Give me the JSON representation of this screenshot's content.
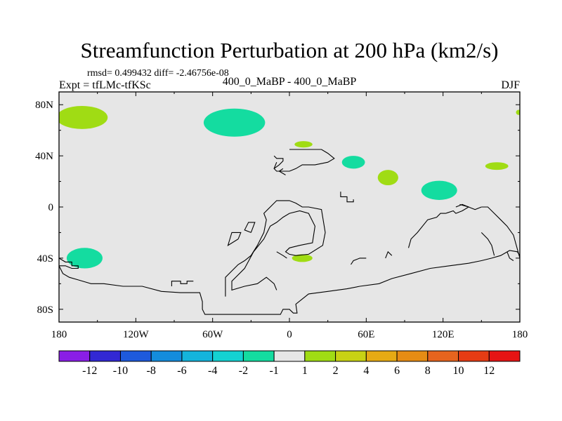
{
  "chart_data": {
    "type": "heatmap",
    "title": "Streamfunction Perturbation at 200 hPa (km2/s)",
    "stats_text": "rmsd= 0.499432 diff= -2.46756e-08",
    "subtitle": "400_0_MaBP - 400_0_MaBP",
    "left_label": "Expt = tfLMc-tfKSc",
    "season": "DJF",
    "x_range": [
      -180,
      180
    ],
    "y_range": [
      -90,
      90
    ],
    "x_ticks": [
      {
        "value": -180,
        "label": "180"
      },
      {
        "value": -120,
        "label": "120W"
      },
      {
        "value": -60,
        "label": "60W"
      },
      {
        "value": 0,
        "label": "0"
      },
      {
        "value": 60,
        "label": "60E"
      },
      {
        "value": 120,
        "label": "120E"
      },
      {
        "value": 180,
        "label": "180"
      }
    ],
    "y_ticks": [
      {
        "value": 80,
        "label": "80N"
      },
      {
        "value": 40,
        "label": "40N"
      },
      {
        "value": 0,
        "label": "0"
      },
      {
        "value": -40,
        "label": "40S"
      },
      {
        "value": -80,
        "label": "80S"
      }
    ],
    "background_color": "#e6e6e6",
    "colorbar": {
      "colors": [
        "#8a1ee6",
        "#3228d4",
        "#1e5adc",
        "#148cdc",
        "#14b4dc",
        "#14d2d2",
        "#14dca0",
        "#e6e6e6",
        "#a0dc14",
        "#c8d214",
        "#e6aa14",
        "#e68c14",
        "#e6641e",
        "#e63c14",
        "#e61414"
      ],
      "labels": [
        "-12",
        "-10",
        "-8",
        "-6",
        "-4",
        "-2",
        "-1",
        "1",
        "2",
        "4",
        "6",
        "8",
        "10",
        "12"
      ]
    },
    "anomalies": [
      {
        "lon": -162,
        "lat": 70,
        "rlon": 20,
        "rlat": 9,
        "value": 1.5,
        "color": "#a0dc14"
      },
      {
        "lon": -43,
        "lat": 66,
        "rlon": 24,
        "rlat": 11,
        "value": -1.5,
        "color": "#14dca0"
      },
      {
        "lon": 11,
        "lat": 49,
        "rlon": 7,
        "rlat": 2.5,
        "value": 1.5,
        "color": "#a0dc14"
      },
      {
        "lon": 50,
        "lat": 35,
        "rlon": 9,
        "rlat": 5,
        "value": -1.5,
        "color": "#14dca0"
      },
      {
        "lon": 77,
        "lat": 23,
        "rlon": 8,
        "rlat": 6,
        "value": 1.5,
        "color": "#a0dc14"
      },
      {
        "lon": 117,
        "lat": 13,
        "rlon": 14,
        "rlat": 7.5,
        "value": -1.5,
        "color": "#14dca0"
      },
      {
        "lon": 162,
        "lat": 32,
        "rlon": 9,
        "rlat": 3,
        "value": 1.5,
        "color": "#a0dc14"
      },
      {
        "lon": -160,
        "lat": -40,
        "rlon": 14,
        "rlat": 8,
        "value": -1.5,
        "color": "#14dca0"
      },
      {
        "lon": 10,
        "lat": -40,
        "rlon": 8,
        "rlat": 3,
        "value": 1.5,
        "color": "#a0dc14"
      },
      {
        "lon": 179,
        "lat": 74,
        "rlon": 2,
        "rlat": 2,
        "value": 1.5,
        "color": "#a0dc14"
      }
    ],
    "outlines": [
      [
        [
          -180,
          -40
        ],
        [
          -175,
          -43
        ],
        [
          -170,
          -43
        ],
        [
          -170,
          -46
        ],
        [
          -165,
          -46
        ],
        [
          -165,
          -48
        ],
        [
          -170,
          -48
        ],
        [
          -175,
          -46
        ],
        [
          -180,
          -46
        ]
      ],
      [
        [
          -180,
          -46
        ],
        [
          -177,
          -52
        ],
        [
          -172,
          -55
        ],
        [
          -165,
          -57
        ],
        [
          -155,
          -60
        ],
        [
          -145,
          -60
        ],
        [
          -130,
          -62
        ],
        [
          -115,
          -62
        ],
        [
          -100,
          -66
        ],
        [
          -85,
          -67
        ],
        [
          -70,
          -67
        ],
        [
          -68,
          -74
        ],
        [
          -68,
          -80
        ],
        [
          -66,
          -84
        ],
        [
          -40,
          -84
        ],
        [
          -20,
          -84
        ],
        [
          -7,
          -84
        ],
        [
          -5,
          -80
        ],
        [
          0,
          -80
        ],
        [
          3,
          -83
        ],
        [
          6,
          -83
        ],
        [
          5,
          -76
        ],
        [
          10,
          -72
        ],
        [
          15,
          -68
        ],
        [
          30,
          -66
        ],
        [
          45,
          -64
        ],
        [
          55,
          -62
        ],
        [
          70,
          -60
        ],
        [
          80,
          -56
        ],
        [
          95,
          -52
        ],
        [
          110,
          -48
        ],
        [
          125,
          -46
        ],
        [
          140,
          -44
        ],
        [
          150,
          -42
        ],
        [
          158,
          -40
        ],
        [
          165,
          -38
        ],
        [
          172,
          -34
        ],
        [
          178,
          -35
        ],
        [
          180,
          -38
        ]
      ],
      [
        [
          -92,
          -62
        ],
        [
          -92,
          -58
        ],
        [
          -85,
          -58
        ],
        [
          -85,
          -60
        ],
        [
          -80,
          -60
        ],
        [
          -80,
          -58
        ],
        [
          -75,
          -58
        ]
      ],
      [
        [
          -50,
          -70
        ],
        [
          -50,
          -55
        ],
        [
          -45,
          -50
        ],
        [
          -40,
          -45
        ],
        [
          -35,
          -42
        ],
        [
          -30,
          -38
        ],
        [
          -25,
          -30
        ],
        [
          -20,
          -20
        ],
        [
          -18,
          -10
        ],
        [
          -20,
          -5
        ],
        [
          -15,
          0
        ],
        [
          -10,
          5
        ],
        [
          0,
          5
        ],
        [
          5,
          3
        ],
        [
          10,
          0
        ],
        [
          15,
          0
        ],
        [
          25,
          -2
        ],
        [
          28,
          -20
        ],
        [
          26,
          -30
        ],
        [
          15,
          -37
        ],
        [
          5,
          -38
        ],
        [
          0,
          -37
        ],
        [
          -3,
          -35
        ],
        [
          0,
          -32
        ],
        [
          8,
          -30
        ],
        [
          18,
          -28
        ],
        [
          20,
          -15
        ],
        [
          15,
          -5
        ],
        [
          8,
          -3
        ],
        [
          0,
          -5
        ],
        [
          -5,
          -8
        ],
        [
          -10,
          -12
        ],
        [
          -15,
          -15
        ],
        [
          -20,
          -25
        ],
        [
          -28,
          -35
        ],
        [
          -35,
          -48
        ],
        [
          -45,
          -58
        ],
        [
          -45,
          -65
        ],
        [
          -35,
          -62
        ],
        [
          -25,
          -60
        ],
        [
          -18,
          -55
        ],
        [
          -12,
          -60
        ],
        [
          -10,
          -65
        ]
      ],
      [
        [
          -30,
          -20
        ],
        [
          -27,
          -12
        ],
        [
          -32,
          -12
        ],
        [
          -35,
          -18
        ],
        [
          -30,
          -20
        ]
      ],
      [
        [
          -40,
          -25
        ],
        [
          -38,
          -20
        ],
        [
          -45,
          -20
        ],
        [
          -48,
          -30
        ],
        [
          -40,
          -25
        ]
      ],
      [
        [
          -10,
          -35
        ],
        [
          -5,
          -38
        ],
        [
          -2,
          -40
        ]
      ],
      [
        [
          -12,
          40
        ],
        [
          -10,
          38
        ],
        [
          -5,
          38
        ],
        [
          -5,
          36
        ],
        [
          -8,
          33
        ],
        [
          -12,
          30
        ]
      ],
      [
        [
          -10,
          35
        ],
        [
          -12,
          30
        ],
        [
          -10,
          28
        ],
        [
          0,
          28
        ],
        [
          5,
          30
        ],
        [
          10,
          33
        ],
        [
          20,
          33
        ],
        [
          30,
          35
        ],
        [
          35,
          38
        ],
        [
          30,
          42
        ],
        [
          25,
          45
        ],
        [
          15,
          45
        ],
        [
          5,
          45
        ],
        [
          0,
          45
        ]
      ],
      [
        [
          -5,
          30
        ],
        [
          -8,
          28
        ],
        [
          -3,
          25
        ]
      ],
      [
        [
          40,
          12
        ],
        [
          40,
          8
        ],
        [
          45,
          8
        ],
        [
          45,
          4
        ],
        [
          50,
          4
        ],
        [
          50,
          6
        ]
      ],
      [
        [
          60,
          -40
        ],
        [
          55,
          -40
        ],
        [
          50,
          -42
        ],
        [
          48,
          -45
        ]
      ],
      [
        [
          75,
          -40
        ],
        [
          77,
          -35
        ],
        [
          80,
          -38
        ]
      ],
      [
        [
          93,
          -32
        ],
        [
          95,
          -25
        ],
        [
          100,
          -20
        ],
        [
          108,
          -10
        ],
        [
          115,
          -8
        ],
        [
          118,
          -5
        ],
        [
          122,
          -5
        ],
        [
          128,
          -3
        ],
        [
          130,
          -5
        ],
        [
          135,
          -3
        ],
        [
          140,
          0
        ],
        [
          135,
          2
        ],
        [
          130,
          0
        ]
      ],
      [
        [
          133,
          2
        ],
        [
          140,
          0
        ],
        [
          145,
          -2
        ],
        [
          150,
          0
        ]
      ],
      [
        [
          150,
          0
        ],
        [
          155,
          0
        ],
        [
          160,
          -5
        ],
        [
          165,
          -10
        ],
        [
          170,
          -15
        ],
        [
          175,
          -22
        ],
        [
          180,
          -40
        ]
      ],
      [
        [
          150,
          -20
        ],
        [
          155,
          -25
        ],
        [
          158,
          -30
        ],
        [
          160,
          -38
        ]
      ],
      [
        [
          170,
          -35
        ],
        [
          172,
          -40
        ],
        [
          175,
          -42
        ]
      ]
    ]
  }
}
